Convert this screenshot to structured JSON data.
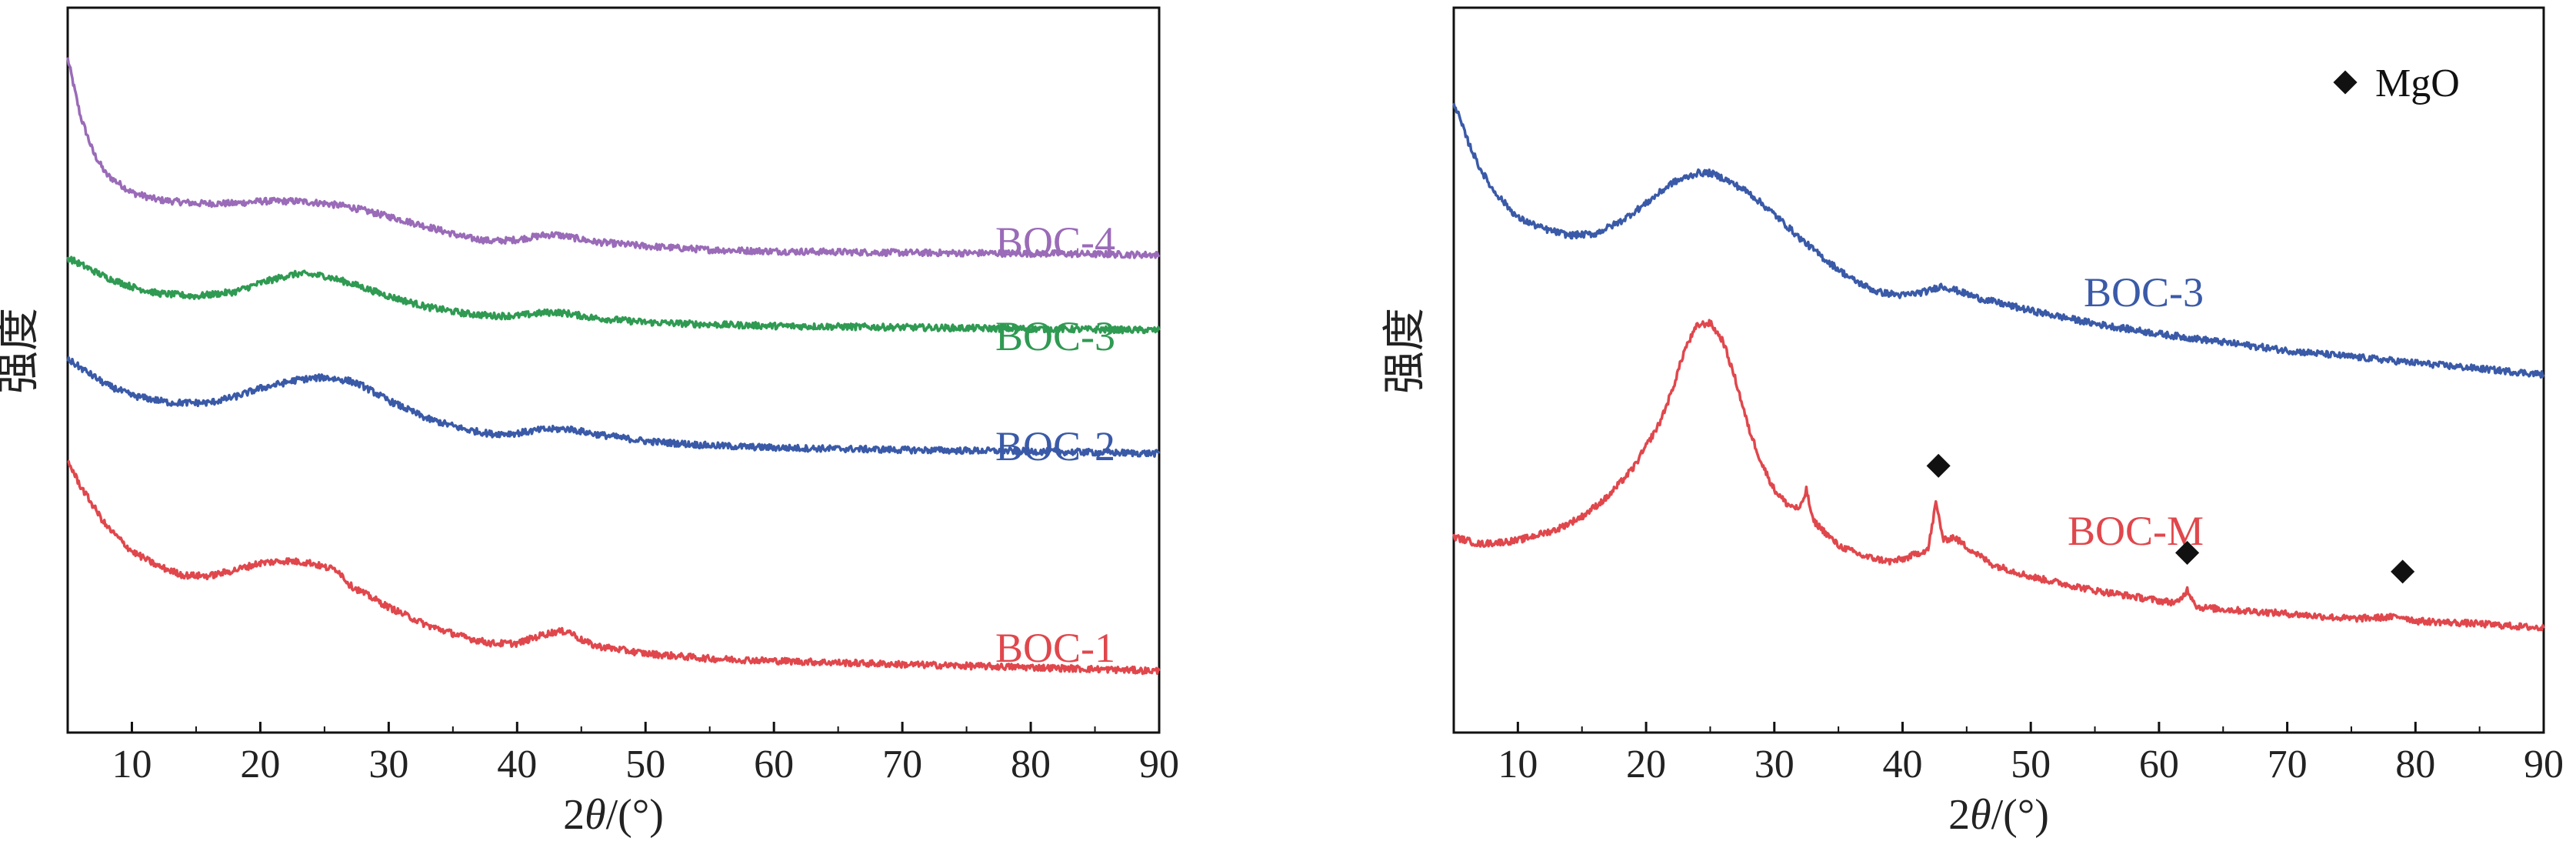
{
  "chart_data": [
    {
      "type": "line",
      "ylabel": "强度",
      "xlabel_prefix": "2",
      "xlabel_theta": "θ",
      "xlabel_suffix": "/(°)",
      "xlim": [
        5,
        90
      ],
      "ylim": [
        0,
        100
      ],
      "xticks": [
        10,
        20,
        30,
        40,
        50,
        60,
        70,
        80,
        90
      ],
      "yticks_shown": false,
      "grid": false,
      "series": [
        {
          "name": "BOC-4",
          "color": "#9a6bb8",
          "x": [
            5,
            6,
            7,
            8,
            10,
            12,
            15,
            18,
            20,
            23,
            25,
            27,
            30,
            33,
            36,
            38,
            40,
            42,
            43,
            44,
            46,
            50,
            55,
            60,
            70,
            80,
            90
          ],
          "y": [
            93,
            85,
            80,
            77,
            74.5,
            73.5,
            73,
            73,
            73.3,
            73.3,
            73,
            72.5,
            71.2,
            69.8,
            68.3,
            67.8,
            68,
            68.6,
            68.7,
            68.4,
            67.7,
            67.1,
            66.6,
            66.4,
            66.2,
            66.1,
            65.9
          ]
        },
        {
          "name": "BOC-3",
          "color": "#2f9a52",
          "x": [
            5,
            8,
            10,
            12,
            15,
            18,
            20,
            22,
            23,
            25,
            27,
            30,
            33,
            36,
            38,
            40,
            42,
            43,
            44,
            46,
            50,
            55,
            60,
            70,
            80,
            90
          ],
          "y": [
            65.5,
            62.8,
            61.5,
            60.6,
            60.2,
            60.8,
            62,
            63,
            63.3,
            63,
            62,
            60.2,
            58.7,
            57.8,
            57.5,
            57.5,
            57.9,
            58,
            57.8,
            57.2,
            56.6,
            56.3,
            56.1,
            55.9,
            55.7,
            55.5
          ]
        },
        {
          "name": "BOC-2",
          "color": "#3a5aa8",
          "x": [
            5,
            8,
            10,
            13,
            16,
            18,
            20,
            23,
            25,
            27,
            28,
            30,
            33,
            36,
            38,
            40,
            42,
            44,
            46,
            50,
            55,
            60,
            70,
            80,
            90
          ],
          "y": [
            51.5,
            48,
            46.5,
            45.5,
            45.5,
            46.3,
            47.5,
            48.7,
            49,
            48.5,
            47.8,
            45.8,
            43.3,
            41.8,
            41.2,
            41.3,
            41.8,
            41.9,
            41.2,
            40.2,
            39.6,
            39.3,
            39,
            38.8,
            38.5
          ]
        },
        {
          "name": "BOC-1",
          "color": "#e0474c",
          "x": [
            5,
            6,
            8,
            10,
            12,
            14,
            16,
            18,
            20,
            22,
            24,
            25,
            26,
            27,
            28,
            30,
            33,
            36,
            38,
            40,
            42,
            43,
            44,
            45,
            46,
            50,
            55,
            60,
            70,
            80,
            90
          ],
          "y": [
            37.5,
            34,
            28.5,
            25,
            23,
            21.7,
            21.6,
            22.4,
            23.4,
            23.7,
            23.4,
            22.8,
            22.5,
            20.3,
            19.3,
            17.3,
            14.8,
            13.1,
            12.3,
            12.3,
            13.5,
            13.9,
            14,
            12.8,
            12,
            10.9,
            10.2,
            9.9,
            9.4,
            9,
            8.5
          ]
        }
      ]
    },
    {
      "type": "line",
      "ylabel": "强度",
      "xlabel_prefix": "2",
      "xlabel_theta": "θ",
      "xlabel_suffix": "/(°)",
      "xlim": [
        5,
        90
      ],
      "ylim": [
        0,
        100
      ],
      "xticks": [
        10,
        20,
        30,
        40,
        50,
        60,
        70,
        80,
        90
      ],
      "yticks_shown": false,
      "grid": false,
      "legend": {
        "marker": "diamond",
        "label": "MgO",
        "placement": "top-right"
      },
      "series": [
        {
          "name": "BOC-3",
          "color": "#3a5aa8",
          "x": [
            5,
            6,
            7,
            8,
            10,
            12,
            14,
            16,
            18,
            20,
            22,
            24,
            25,
            26,
            28,
            30,
            32,
            34,
            36,
            38,
            40,
            42,
            43,
            44,
            46,
            50,
            55,
            60,
            70,
            80,
            90
          ],
          "y": [
            87,
            82,
            78,
            75,
            71,
            69.5,
            68.6,
            68.8,
            70.5,
            73,
            75.8,
            77.2,
            77.2,
            76.5,
            74.5,
            71.5,
            68.2,
            65.2,
            62.6,
            60.8,
            60.3,
            60.9,
            61.6,
            61.1,
            59.9,
            58.2,
            56.4,
            55,
            52.7,
            51,
            49.4
          ]
        },
        {
          "name": "BOC-M",
          "color": "#e0474c",
          "x": [
            5,
            7,
            10,
            13,
            15,
            17,
            19,
            21,
            22,
            23,
            24,
            25,
            26,
            27,
            28,
            29,
            30,
            31,
            32,
            32.5,
            33,
            35,
            37,
            39,
            40,
            41,
            42,
            42.6,
            43.2,
            44,
            45,
            47,
            50,
            55,
            60,
            61.5,
            62.2,
            63,
            65,
            70,
            75,
            79,
            80,
            85,
            90
          ],
          "y": [
            27,
            26,
            26.5,
            28,
            29.8,
            32.5,
            36.5,
            42.5,
            47,
            52.8,
            56.2,
            56.5,
            54,
            48.5,
            42,
            37.2,
            33.5,
            31.5,
            30.8,
            33.5,
            29.3,
            25.8,
            24.3,
            23.6,
            23.9,
            24.6,
            25.3,
            31.7,
            26.5,
            27,
            25.6,
            23.2,
            21.5,
            19.6,
            18.2,
            17.9,
            19.7,
            17.3,
            17,
            16.4,
            15.7,
            16,
            15.4,
            15,
            14.4
          ]
        }
      ]
    }
  ],
  "markers_mgo": [
    {
      "x": 42.8,
      "y": 36.8
    },
    {
      "x": 62.2,
      "y": 24.8
    },
    {
      "x": 79,
      "y": 22.2
    }
  ]
}
